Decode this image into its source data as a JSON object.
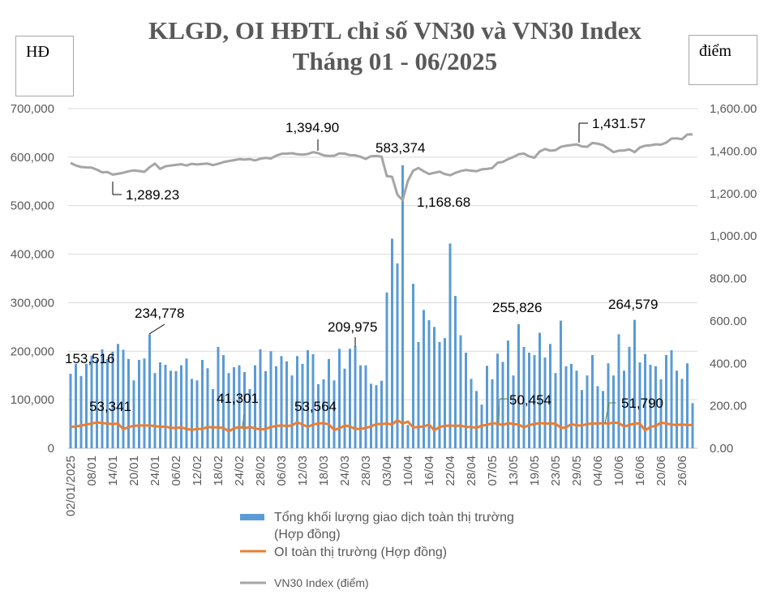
{
  "chart_data": {
    "type": "bar+line",
    "title_line1": "KLGD, OI HĐTL chỉ số VN30 và VN30 Index",
    "title_line2": "Tháng 01 - 06/2025",
    "left_axis_unit": "HĐ",
    "right_axis_unit": "điểm",
    "left_ylim": [
      0,
      700000
    ],
    "right_ylim": [
      0,
      1600
    ],
    "left_ticks": [
      "0",
      "100,000",
      "200,000",
      "300,000",
      "400,000",
      "500,000",
      "600,000",
      "700,000"
    ],
    "right_ticks": [
      "0.00",
      "200.00",
      "400.00",
      "600.00",
      "800.00",
      "1,000.00",
      "1,200.00",
      "1,400.00",
      "1,600.00"
    ],
    "grid": true,
    "legend_placement": "bottom",
    "x_tick_labels": [
      "02/01/2025",
      "08/01",
      "14/01",
      "20/01",
      "24/01",
      "06/02",
      "12/02",
      "18/02",
      "24/02",
      "28/02",
      "06/03",
      "12/03",
      "18/03",
      "24/03",
      "28/03",
      "03/04",
      "10/04",
      "16/04",
      "22/04",
      "28/04",
      "07/05",
      "13/05",
      "19/05",
      "23/05",
      "29/05",
      "04/06",
      "10/06",
      "16/06",
      "20/06",
      "26/06"
    ],
    "colors": {
      "volume": "#5b9bd5",
      "oi": "#ed7d31",
      "index": "#a5a5a5"
    },
    "series": [
      {
        "name": "Tổng khối lượng giao dịch toàn thị trường (Hợp đồng)",
        "type": "bar",
        "axis": "left",
        "values": [
          153516,
          174000,
          149000,
          174000,
          191000,
          183000,
          204000,
          184000,
          199000,
          215000,
          203000,
          184000,
          140000,
          182000,
          185000,
          234778,
          155000,
          177000,
          172000,
          160000,
          159000,
          171000,
          185000,
          143000,
          140000,
          182000,
          165000,
          122000,
          209000,
          192000,
          155000,
          167000,
          171000,
          157000,
          122000,
          171000,
          204000,
          159000,
          200000,
          169000,
          190000,
          179000,
          150000,
          190000,
          174000,
          202000,
          194000,
          132000,
          142000,
          184000,
          140000,
          205000,
          164000,
          205000,
          209975,
          171000,
          171000,
          133000,
          130000,
          139000,
          321000,
          432000,
          381000,
          583374,
          48000,
          339000,
          219000,
          285000,
          264000,
          250000,
          219000,
          227000,
          422000,
          314000,
          233000,
          197000,
          143000,
          118000,
          90000,
          170000,
          142000,
          195000,
          178000,
          222000,
          150000,
          255826,
          209000,
          197000,
          192000,
          238000,
          187000,
          215000,
          155000,
          263000,
          169000,
          174000,
          160000,
          120000,
          150000,
          192000,
          128000,
          118000,
          175000,
          150000,
          235000,
          160000,
          209000,
          264579,
          177000,
          194000,
          172000,
          169000,
          142000,
          192000,
          202000,
          160000,
          143000,
          175000,
          93000
        ]
      },
      {
        "name": "OI toàn thị trường (Hợp đồng)",
        "type": "line",
        "axis": "left",
        "values": [
          44000,
          45000,
          47000,
          49000,
          51000,
          53341,
          52000,
          51000,
          50000,
          51000,
          39000,
          44000,
          46000,
          47000,
          47000,
          47000,
          46000,
          44000,
          45000,
          42000,
          42000,
          43000,
          40000,
          38000,
          40000,
          40000,
          44000,
          43000,
          43000,
          42000,
          35000,
          41000,
          44000,
          41301,
          44000,
          41000,
          39000,
          40000,
          44000,
          46000,
          47000,
          46000,
          47000,
          53564,
          49000,
          44000,
          49000,
          51000,
          52000,
          49000,
          38000,
          41000,
          47000,
          45000,
          40000,
          40000,
          42000,
          45000,
          50000,
          50000,
          51000,
          49000,
          58000,
          51000,
          55000,
          43000,
          44000,
          45000,
          49000,
          37000,
          44000,
          46000,
          47000,
          46000,
          47000,
          44000,
          44000,
          42000,
          47000,
          48000,
          52000,
          50454,
          48000,
          52000,
          50000,
          49000,
          43000,
          48000,
          50000,
          52000,
          51000,
          51000,
          51000,
          42000,
          43000,
          50000,
          47000,
          47000,
          50000,
          51000,
          51000,
          51790,
          51000,
          53000,
          52000,
          45000,
          48000,
          51000,
          51000,
          37000,
          44000,
          46000,
          53000,
          51000,
          49000,
          48000,
          49000,
          48000,
          48000
        ]
      },
      {
        "name": "VN30 Index (điểm)",
        "type": "line",
        "axis": "right",
        "values": [
          1344,
          1332,
          1325,
          1323,
          1322,
          1312,
          1300,
          1301,
          1289.23,
          1293,
          1298,
          1305,
          1309,
          1306,
          1302,
          1324,
          1341,
          1316,
          1328,
          1332,
          1335,
          1338,
          1332,
          1340,
          1337,
          1339,
          1341,
          1334,
          1340,
          1348,
          1353,
          1357,
          1362,
          1360,
          1362,
          1356,
          1364,
          1368,
          1365,
          1378,
          1387,
          1388,
          1390,
          1385,
          1383,
          1386,
          1394.9,
          1390,
          1380,
          1377,
          1378,
          1389,
          1388,
          1381,
          1380,
          1373,
          1363,
          1376,
          1377,
          1374,
          1282,
          1279,
          1195,
          1168.68,
          1260,
          1308,
          1320,
          1305,
          1292,
          1298,
          1303,
          1292,
          1286,
          1297,
          1306,
          1311,
          1308,
          1305,
          1314,
          1316,
          1320,
          1345,
          1349,
          1362,
          1372,
          1385,
          1388,
          1375,
          1369,
          1398,
          1410,
          1402,
          1404,
          1420,
          1425,
          1428,
          1431.57,
          1422,
          1420,
          1438,
          1435,
          1428,
          1412,
          1395,
          1402,
          1403,
          1408,
          1395,
          1417,
          1425,
          1427,
          1432,
          1430,
          1440,
          1459,
          1460,
          1456,
          1478,
          1478
        ]
      }
    ],
    "data_labels": {
      "vol": [
        "153,516",
        "234,778",
        "209,975",
        "583,374",
        "255,826",
        "264,579"
      ],
      "oi": [
        "53,341",
        "41,301",
        "53,564",
        "50,454",
        "51,790"
      ],
      "index": [
        "1,289.23",
        "1,394.90",
        "1,168.68",
        "1,431.57"
      ]
    },
    "legend": {
      "volume_line1": "Tổng khối lượng giao dịch toàn thị trường",
      "volume_line2": "(Hợp đồng)",
      "oi": "OI toàn thị trường (Hợp đồng)",
      "index": "VN30 Index (điểm)"
    }
  }
}
